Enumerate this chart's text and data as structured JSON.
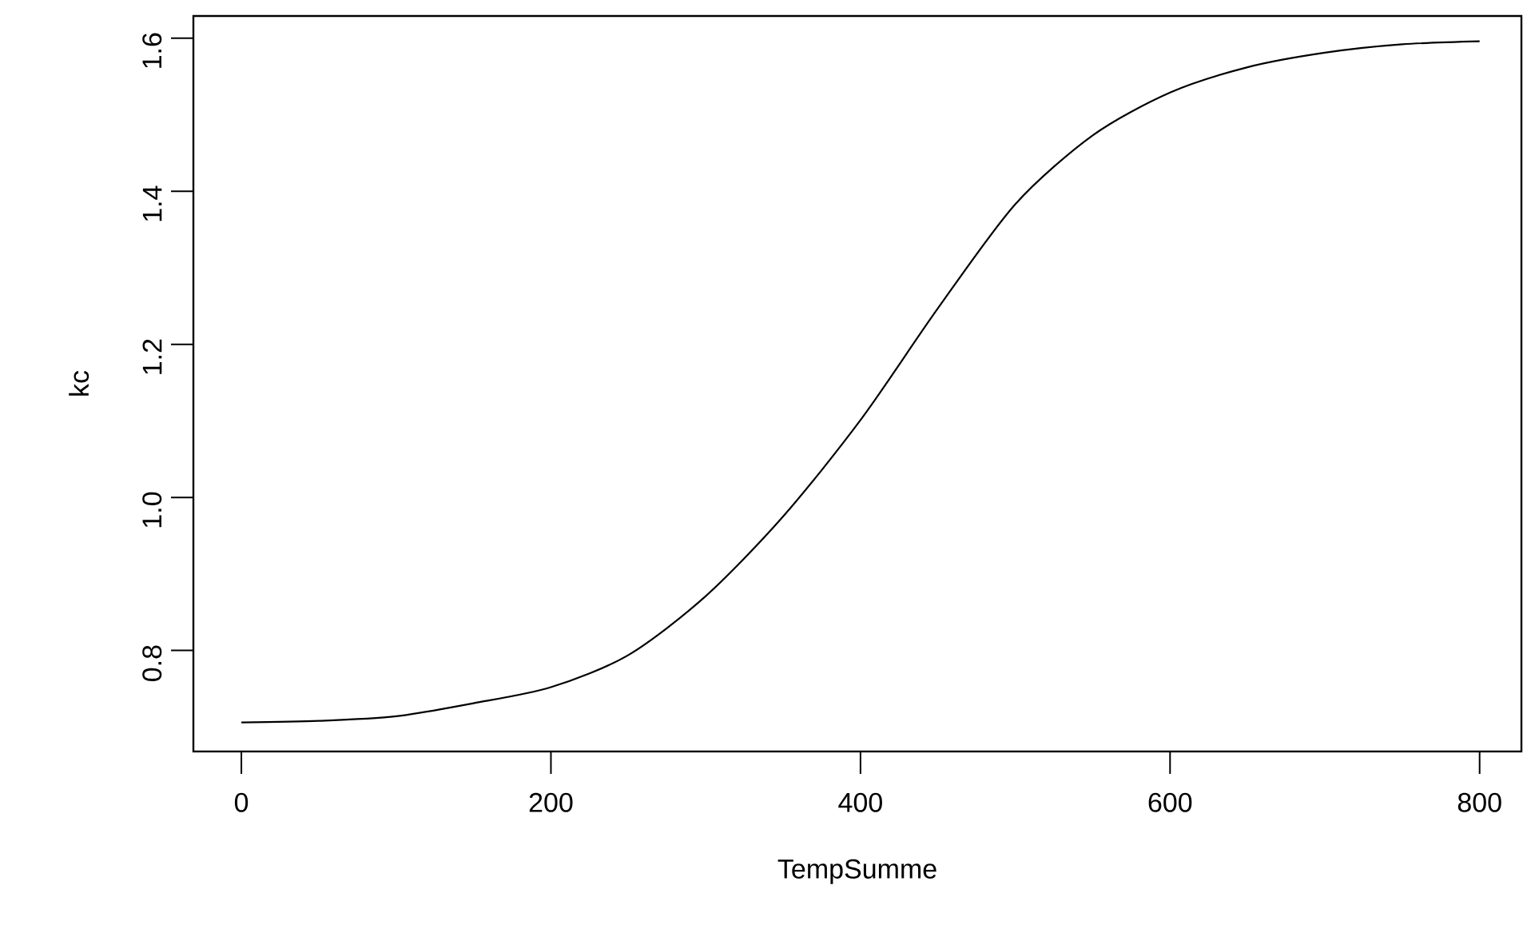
{
  "chart_data": {
    "type": "line",
    "xlabel": "TempSumme",
    "ylabel": "kc",
    "xlim": [
      -31,
      827
    ],
    "ylim": [
      0.668,
      1.629
    ],
    "xticks": [
      0,
      200,
      400,
      600,
      800
    ],
    "yticks": [
      0.8,
      {
        "value": 1.0,
        "label": "1.0"
      },
      1.2,
      1.4,
      1.6
    ],
    "x": [
      0,
      50,
      100,
      150,
      200,
      250,
      300,
      350,
      400,
      450,
      500,
      550,
      600,
      650,
      700,
      750,
      800
    ],
    "series": [
      {
        "color": "#000000",
        "values": [
          0.706,
          0.708,
          0.714,
          0.731,
          0.752,
          0.794,
          0.871,
          0.975,
          1.101,
          1.247,
          1.383,
          1.473,
          1.529,
          1.562,
          1.581,
          1.592,
          1.596
        ]
      }
    ],
    "line_style": "solid"
  }
}
